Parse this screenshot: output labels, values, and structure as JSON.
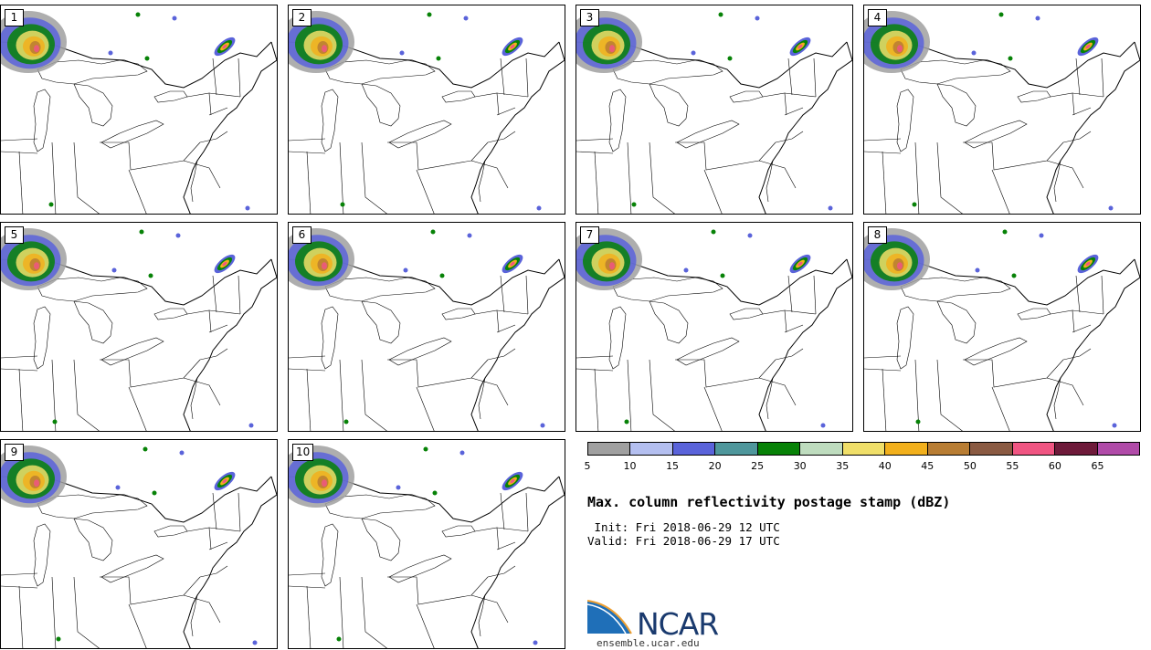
{
  "panels": [
    {
      "label": "1",
      "storms": [
        [
          340,
          55
        ],
        [
          245,
          45
        ]
      ]
    },
    {
      "label": "2",
      "storms": [
        [
          340,
          55
        ]
      ]
    },
    {
      "label": "3",
      "storms": [
        [
          340,
          55
        ],
        [
          250,
          45
        ]
      ]
    },
    {
      "label": "4",
      "storms": [
        [
          340,
          55
        ],
        [
          250,
          45
        ]
      ]
    },
    {
      "label": "5",
      "storms": [
        [
          340,
          55
        ],
        [
          250,
          45
        ]
      ]
    },
    {
      "label": "6",
      "storms": [
        [
          340,
          55
        ],
        [
          250,
          45
        ]
      ]
    },
    {
      "label": "7",
      "storms": [
        [
          340,
          55
        ],
        [
          250,
          50
        ]
      ]
    },
    {
      "label": "8",
      "storms": [
        [
          340,
          55
        ],
        [
          250,
          50
        ]
      ]
    },
    {
      "label": "9",
      "storms": [
        [
          340,
          55
        ],
        [
          250,
          45
        ]
      ]
    },
    {
      "label": "10",
      "storms": [
        [
          340,
          55
        ],
        [
          250,
          50
        ]
      ]
    }
  ],
  "colorbar": {
    "colors": [
      "#a0a0a0",
      "#b4bff0",
      "#5a63da",
      "#4f979c",
      "#078207",
      "#bedcbe",
      "#f0df69",
      "#f2b01c",
      "#b87d33",
      "#8a5a42",
      "#f05582",
      "#6e1a3a",
      "#b04aa8"
    ],
    "ticks": [
      "5",
      "10",
      "15",
      "20",
      "25",
      "30",
      "35",
      "40",
      "45",
      "50",
      "55",
      "60",
      "65"
    ]
  },
  "title": "Max. column reflectivity postage stamp (dBZ)",
  "init_line": " Init: Fri 2018-06-29 12 UTC",
  "valid_line": "Valid: Fri 2018-06-29 17 UTC",
  "logo_text": "NCAR",
  "site": "ensemble.ucar.edu"
}
